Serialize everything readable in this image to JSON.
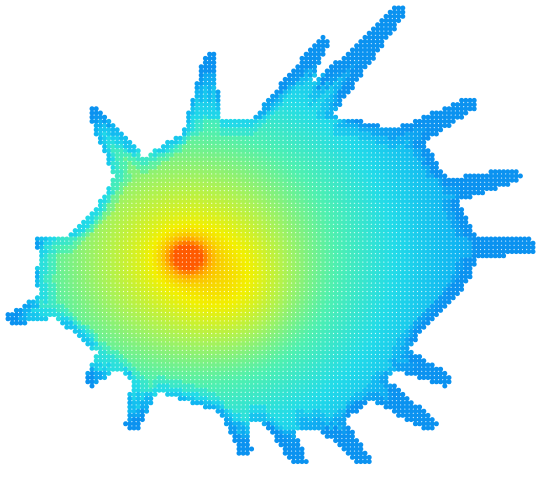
{
  "chart_data": {
    "type": "scatter",
    "title": "",
    "xlabel": "",
    "ylabel": "",
    "grid": false,
    "legend": "none",
    "axes_visible": false,
    "marker": "filled-circle",
    "color_scale": [
      "#0a8cf0",
      "#10b6f2",
      "#22dbe8",
      "#4ef0b0",
      "#a6f25a",
      "#f2f000",
      "#ffb000",
      "#ff5a00"
    ],
    "peak": {
      "x": 187,
      "y": 257
    },
    "x_range": [
      10,
      535
    ],
    "y_range": [
      10,
      465
    ],
    "rays": [
      {
        "tip_x": 398,
        "tip_y": 12
      },
      {
        "tip_x": 322,
        "tip_y": 44
      },
      {
        "tip_x": 210,
        "tip_y": 60
      },
      {
        "tip_x": 95,
        "tip_y": 114
      },
      {
        "tip_x": 470,
        "tip_y": 104
      },
      {
        "tip_x": 514,
        "tip_y": 175
      },
      {
        "tip_x": 530,
        "tip_y": 246
      },
      {
        "tip_x": 445,
        "tip_y": 380
      },
      {
        "tip_x": 430,
        "tip_y": 425
      },
      {
        "tip_x": 365,
        "tip_y": 462
      },
      {
        "tip_x": 300,
        "tip_y": 462
      },
      {
        "tip_x": 245,
        "tip_y": 450
      },
      {
        "tip_x": 132,
        "tip_y": 425
      },
      {
        "tip_x": 92,
        "tip_y": 380
      },
      {
        "tip_x": 14,
        "tip_y": 318
      },
      {
        "tip_x": 40,
        "tip_y": 245
      }
    ]
  }
}
